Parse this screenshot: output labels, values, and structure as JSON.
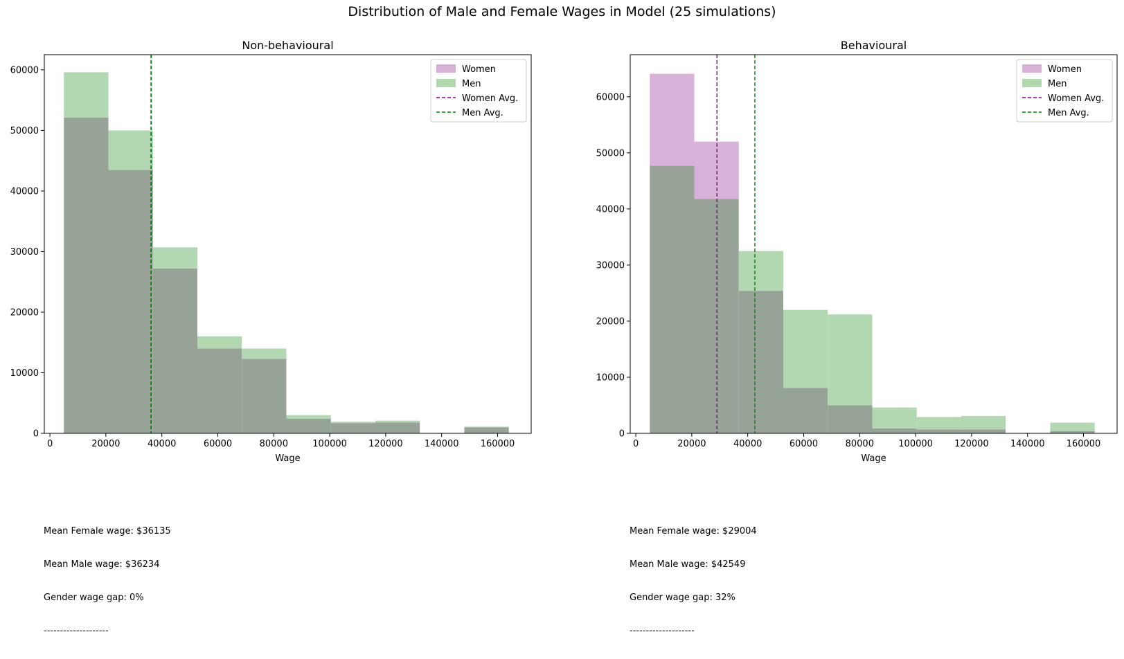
{
  "title": "Distribution of Male and Female Wages in Model (25 simulations)",
  "colors": {
    "women_fill": "#d8b1d8",
    "men_fill": "#b1d8b1",
    "overlap_fill": "#97a397",
    "women_line": "#800080",
    "men_line": "#008000"
  },
  "chart_data": [
    {
      "type": "bar",
      "title": "Non-behavioural",
      "xlabel": "Wage",
      "ylabel": "",
      "xlim": [
        -2000,
        172000
      ],
      "ylim": [
        0,
        62500
      ],
      "xticks": [
        0,
        20000,
        40000,
        60000,
        80000,
        100000,
        120000,
        140000,
        160000
      ],
      "yticks": [
        0,
        10000,
        20000,
        30000,
        40000,
        50000,
        60000
      ],
      "bin_edges": [
        5000,
        20900,
        36800,
        52700,
        68600,
        84500,
        100400,
        116300,
        132200,
        148100,
        164000
      ],
      "series": [
        {
          "name": "Women",
          "values": [
            52100,
            43500,
            27200,
            14000,
            12300,
            2400,
            1700,
            1800,
            0,
            1000
          ]
        },
        {
          "name": "Men",
          "values": [
            59600,
            50000,
            30700,
            16000,
            14000,
            3000,
            1900,
            2100,
            0,
            1100
          ]
        }
      ],
      "lines": [
        {
          "name": "Women Avg.",
          "x": 36135
        },
        {
          "name": "Men Avg.",
          "x": 36234
        }
      ],
      "legend_position": "top-right",
      "stats": [
        "Mean Female wage: $36135",
        "Mean Male wage: $36234",
        "Gender wage gap: 0%",
        "--------------------"
      ]
    },
    {
      "type": "bar",
      "title": "Behavioural",
      "xlabel": "Wage",
      "ylabel": "",
      "xlim": [
        -2000,
        172000
      ],
      "ylim": [
        0,
        67500
      ],
      "xticks": [
        0,
        20000,
        40000,
        60000,
        80000,
        100000,
        120000,
        140000,
        160000
      ],
      "yticks": [
        0,
        10000,
        20000,
        30000,
        40000,
        50000,
        60000
      ],
      "bin_edges": [
        5000,
        20900,
        36800,
        52700,
        68600,
        84500,
        100400,
        116300,
        132200,
        148100,
        164000
      ],
      "series": [
        {
          "name": "Women",
          "values": [
            64100,
            52000,
            25400,
            8100,
            5000,
            900,
            700,
            700,
            0,
            400
          ]
        },
        {
          "name": "Men",
          "values": [
            47700,
            41800,
            32500,
            22000,
            21200,
            4600,
            2900,
            3100,
            0,
            1900
          ]
        }
      ],
      "lines": [
        {
          "name": "Women Avg.",
          "x": 29004
        },
        {
          "name": "Men Avg.",
          "x": 42549
        }
      ],
      "legend_position": "top-right",
      "stats": [
        "Mean Female wage: $29004",
        "Mean Male wage: $42549",
        "Gender wage gap: 32%",
        "--------------------"
      ]
    }
  ]
}
